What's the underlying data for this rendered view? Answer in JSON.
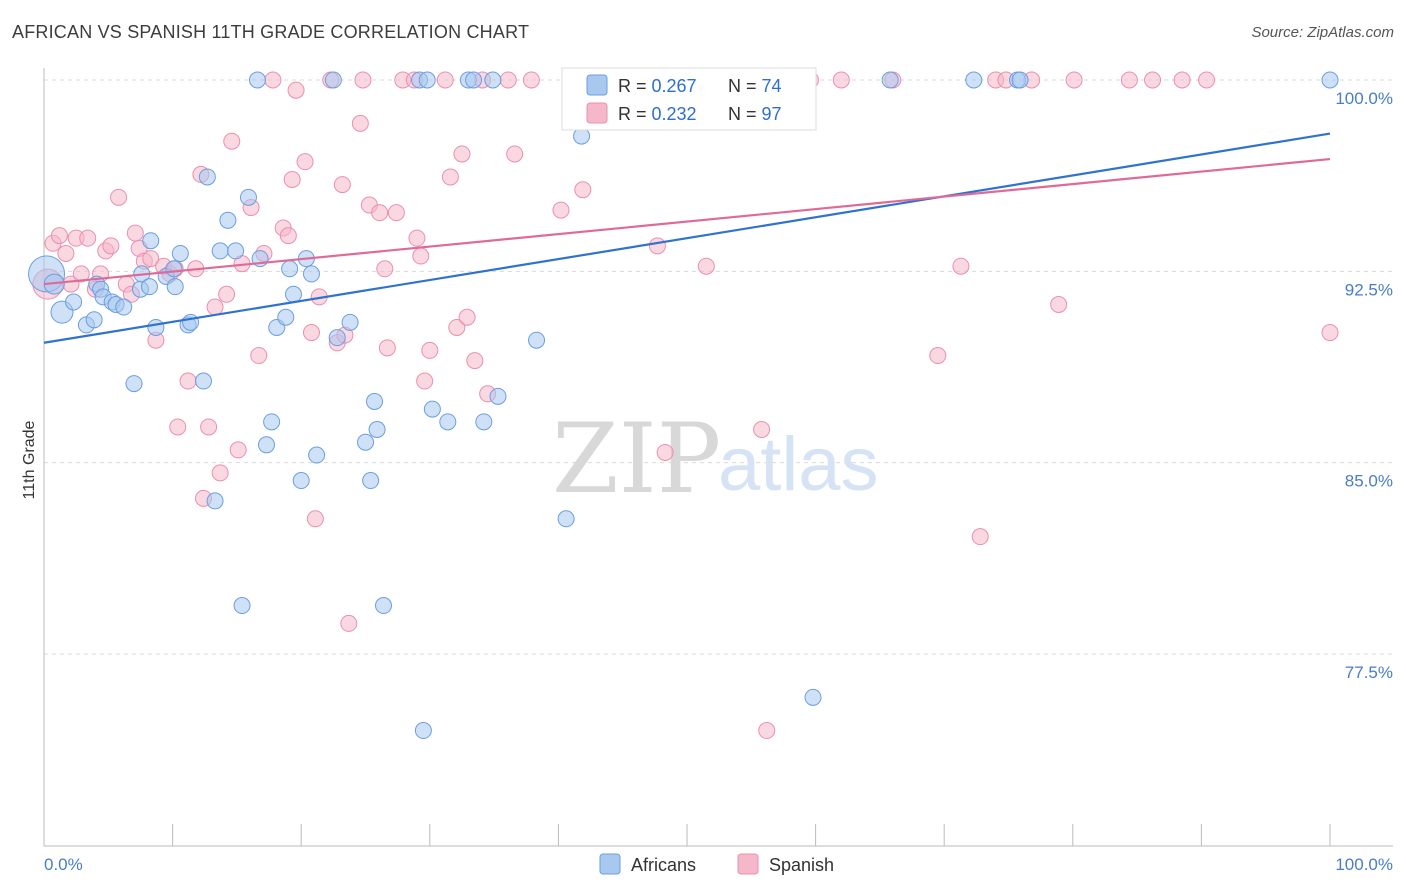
{
  "title": "AFRICAN VS SPANISH 11TH GRADE CORRELATION CHART",
  "source": "Source: ZipAtlas.com",
  "watermark": {
    "zip": "ZIP",
    "atlas": "atlas"
  },
  "colors": {
    "africans_fill": "#a8c8f0",
    "africans_stroke": "#6b9ee0",
    "africans_line": "#2f73cf",
    "spanish_fill": "#f5b8cb",
    "spanish_stroke": "#ec8fae",
    "spanish_line": "#e06a97",
    "grid": "#d9d9d9",
    "tick_text": "#4a7cc7"
  },
  "legend": {
    "africans": {
      "r_label": "R = ",
      "r_value": "0.267",
      "n_label": "N = ",
      "n_value": "74"
    },
    "spanish": {
      "r_label": "R = ",
      "r_value": "0.232",
      "n_label": "N = ",
      "n_value": "97"
    }
  },
  "chart_data": {
    "type": "scatter",
    "title": "AFRICAN VS SPANISH 11TH GRADE CORRELATION CHART",
    "xlabel": "",
    "ylabel": "11th Grade",
    "xlim": [
      0,
      100
    ],
    "ylim": [
      71.0,
      102.0
    ],
    "x_tick_labels": [
      "0.0%",
      "100.0%"
    ],
    "y_ticks": [
      77.5,
      85.0,
      92.5,
      100.0
    ],
    "y_tick_labels": [
      "77.5%",
      "85.0%",
      "92.5%",
      "100.0%"
    ],
    "grid": "horizontal dashed",
    "legend_position": "top-center",
    "series": [
      {
        "name": "Africans",
        "r": 0.267,
        "n": 74,
        "trend": {
          "x": [
            0,
            100
          ],
          "y": [
            89.7,
            97.9
          ]
        },
        "points": [
          [
            0.2,
            92.4,
            34
          ],
          [
            0.8,
            92.0,
            18
          ],
          [
            1.4,
            90.9,
            20
          ],
          [
            2.3,
            91.3,
            14
          ],
          [
            3.3,
            90.4,
            14
          ],
          [
            3.9,
            90.6,
            14
          ],
          [
            4.1,
            92.0,
            14
          ],
          [
            4.4,
            91.8,
            14
          ],
          [
            4.6,
            91.5,
            14
          ],
          [
            5.3,
            91.3,
            14
          ],
          [
            5.6,
            91.2,
            14
          ],
          [
            6.2,
            91.1,
            14
          ],
          [
            7.0,
            88.1,
            14
          ],
          [
            7.5,
            91.8,
            14
          ],
          [
            7.6,
            92.4,
            14
          ],
          [
            8.2,
            91.9,
            14
          ],
          [
            8.3,
            93.7,
            14
          ],
          [
            8.7,
            90.3,
            14
          ],
          [
            9.5,
            92.3,
            14
          ],
          [
            10.1,
            92.6,
            14
          ],
          [
            10.2,
            91.9,
            14
          ],
          [
            10.6,
            93.2,
            14
          ],
          [
            11.2,
            90.4,
            14
          ],
          [
            11.4,
            90.5,
            14
          ],
          [
            12.4,
            88.2,
            14
          ],
          [
            12.7,
            96.2,
            14
          ],
          [
            13.3,
            83.5,
            14
          ],
          [
            13.7,
            93.3,
            14
          ],
          [
            14.3,
            94.5,
            14
          ],
          [
            14.9,
            93.3,
            14
          ],
          [
            15.4,
            79.4,
            14
          ],
          [
            15.9,
            95.4,
            14
          ],
          [
            16.6,
            100.0,
            14
          ],
          [
            16.8,
            93.0,
            14
          ],
          [
            17.3,
            85.7,
            14
          ],
          [
            17.7,
            86.6,
            14
          ],
          [
            18.1,
            90.3,
            14
          ],
          [
            18.8,
            90.7,
            14
          ],
          [
            19.1,
            92.6,
            14
          ],
          [
            19.4,
            91.6,
            14
          ],
          [
            20.0,
            84.3,
            14
          ],
          [
            20.4,
            93.0,
            14
          ],
          [
            20.8,
            92.4,
            14
          ],
          [
            21.2,
            85.3,
            14
          ],
          [
            22.5,
            100.0,
            14
          ],
          [
            22.8,
            89.9,
            14
          ],
          [
            23.8,
            90.5,
            14
          ],
          [
            25.0,
            85.8,
            14
          ],
          [
            25.4,
            84.3,
            14
          ],
          [
            25.7,
            87.4,
            14
          ],
          [
            25.9,
            86.3,
            14
          ],
          [
            26.4,
            79.4,
            14
          ],
          [
            29.2,
            100.0,
            14
          ],
          [
            29.5,
            74.5,
            14
          ],
          [
            29.8,
            100.0,
            14
          ],
          [
            30.2,
            87.1,
            14
          ],
          [
            31.4,
            86.6,
            14
          ],
          [
            33.0,
            100.0,
            14
          ],
          [
            33.4,
            100.0,
            14
          ],
          [
            34.2,
            86.6,
            14
          ],
          [
            34.9,
            100.0,
            14
          ],
          [
            35.3,
            87.6,
            14
          ],
          [
            38.3,
            89.8,
            14
          ],
          [
            40.6,
            82.8,
            14
          ],
          [
            41.8,
            97.8,
            14
          ],
          [
            42.1,
            100.0,
            14
          ],
          [
            55.1,
            99.1,
            14
          ],
          [
            59.8,
            75.8,
            14
          ],
          [
            65.8,
            100.0,
            14
          ],
          [
            72.3,
            100.0,
            14
          ],
          [
            75.7,
            100.0,
            14
          ],
          [
            75.9,
            100.0,
            14
          ],
          [
            100.0,
            100.0,
            14
          ]
        ]
      },
      {
        "name": "Spanish",
        "r": 0.232,
        "n": 97,
        "trend": {
          "x": [
            0,
            100
          ],
          "y": [
            92.0,
            96.9
          ]
        },
        "points": [
          [
            0.3,
            92.0,
            28
          ],
          [
            0.7,
            93.6,
            14
          ],
          [
            1.2,
            93.9,
            14
          ],
          [
            1.7,
            93.2,
            14
          ],
          [
            2.1,
            92.0,
            14
          ],
          [
            2.5,
            93.8,
            14
          ],
          [
            2.9,
            92.4,
            14
          ],
          [
            3.4,
            93.8,
            14
          ],
          [
            4.0,
            91.8,
            14
          ],
          [
            4.4,
            92.4,
            14
          ],
          [
            4.8,
            93.3,
            14
          ],
          [
            5.2,
            93.5,
            14
          ],
          [
            5.8,
            95.4,
            14
          ],
          [
            6.4,
            92.0,
            14
          ],
          [
            6.8,
            91.6,
            14
          ],
          [
            7.1,
            94.0,
            14
          ],
          [
            7.4,
            93.4,
            14
          ],
          [
            7.8,
            92.9,
            14
          ],
          [
            8.3,
            93.0,
            14
          ],
          [
            8.7,
            89.8,
            14
          ],
          [
            9.3,
            92.7,
            14
          ],
          [
            9.8,
            92.4,
            14
          ],
          [
            10.2,
            92.6,
            14
          ],
          [
            10.4,
            86.4,
            14
          ],
          [
            11.2,
            88.2,
            14
          ],
          [
            11.8,
            92.6,
            14
          ],
          [
            12.2,
            96.3,
            14
          ],
          [
            12.4,
            83.6,
            14
          ],
          [
            12.8,
            86.4,
            14
          ],
          [
            13.3,
            91.1,
            14
          ],
          [
            13.7,
            84.6,
            14
          ],
          [
            14.2,
            91.6,
            14
          ],
          [
            14.6,
            97.6,
            14
          ],
          [
            15.1,
            85.5,
            14
          ],
          [
            15.4,
            92.8,
            14
          ],
          [
            16.1,
            95.0,
            14
          ],
          [
            16.7,
            89.2,
            14
          ],
          [
            17.1,
            93.2,
            14
          ],
          [
            17.8,
            100.0,
            14
          ],
          [
            18.6,
            94.2,
            14
          ],
          [
            19.0,
            93.9,
            14
          ],
          [
            19.3,
            96.1,
            14
          ],
          [
            19.6,
            99.6,
            14
          ],
          [
            20.3,
            96.8,
            14
          ],
          [
            20.8,
            90.1,
            14
          ],
          [
            21.1,
            82.8,
            14
          ],
          [
            21.4,
            91.5,
            14
          ],
          [
            22.3,
            100.0,
            14
          ],
          [
            22.8,
            89.7,
            14
          ],
          [
            23.2,
            95.9,
            14
          ],
          [
            23.4,
            90.0,
            14
          ],
          [
            23.7,
            78.7,
            14
          ],
          [
            24.6,
            98.3,
            14
          ],
          [
            24.8,
            100.0,
            14
          ],
          [
            25.3,
            95.1,
            14
          ],
          [
            26.1,
            94.8,
            14
          ],
          [
            26.5,
            92.6,
            14
          ],
          [
            26.7,
            89.5,
            14
          ],
          [
            27.4,
            94.8,
            14
          ],
          [
            27.9,
            100.0,
            14
          ],
          [
            28.8,
            100.0,
            14
          ],
          [
            29.0,
            93.8,
            14
          ],
          [
            29.3,
            93.1,
            14
          ],
          [
            29.6,
            88.2,
            14
          ],
          [
            30.0,
            89.4,
            14
          ],
          [
            31.2,
            100.0,
            14
          ],
          [
            31.6,
            96.2,
            14
          ],
          [
            32.1,
            90.3,
            14
          ],
          [
            32.5,
            97.1,
            14
          ],
          [
            32.9,
            90.7,
            14
          ],
          [
            33.5,
            89.0,
            14
          ],
          [
            34.1,
            100.0,
            14
          ],
          [
            34.5,
            87.7,
            14
          ],
          [
            36.1,
            100.0,
            14
          ],
          [
            36.6,
            97.1,
            14
          ],
          [
            37.9,
            100.0,
            14
          ],
          [
            40.2,
            94.9,
            14
          ],
          [
            41.1,
            100.0,
            14
          ],
          [
            41.9,
            95.7,
            14
          ],
          [
            43.9,
            100.0,
            14
          ],
          [
            47.4,
            100.0,
            14
          ],
          [
            47.7,
            93.5,
            14
          ],
          [
            48.3,
            85.4,
            14
          ],
          [
            51.5,
            92.7,
            14
          ],
          [
            52.4,
            100.0,
            14
          ],
          [
            53.1,
            100.0,
            14
          ],
          [
            55.8,
            86.3,
            14
          ],
          [
            56.2,
            74.5,
            14
          ],
          [
            59.6,
            100.0,
            14
          ],
          [
            62.0,
            100.0,
            14
          ],
          [
            66.0,
            100.0,
            14
          ],
          [
            69.5,
            89.2,
            14
          ],
          [
            71.3,
            92.7,
            14
          ],
          [
            72.8,
            82.1,
            14
          ],
          [
            74.0,
            100.0,
            14
          ],
          [
            74.8,
            100.0,
            14
          ],
          [
            76.8,
            100.0,
            14
          ],
          [
            78.9,
            91.2,
            14
          ],
          [
            80.1,
            100.0,
            14
          ],
          [
            84.4,
            100.0,
            14
          ],
          [
            86.2,
            100.0,
            14
          ],
          [
            88.5,
            100.0,
            14
          ],
          [
            90.4,
            100.0,
            14
          ],
          [
            100.0,
            90.1,
            14
          ]
        ]
      }
    ]
  }
}
